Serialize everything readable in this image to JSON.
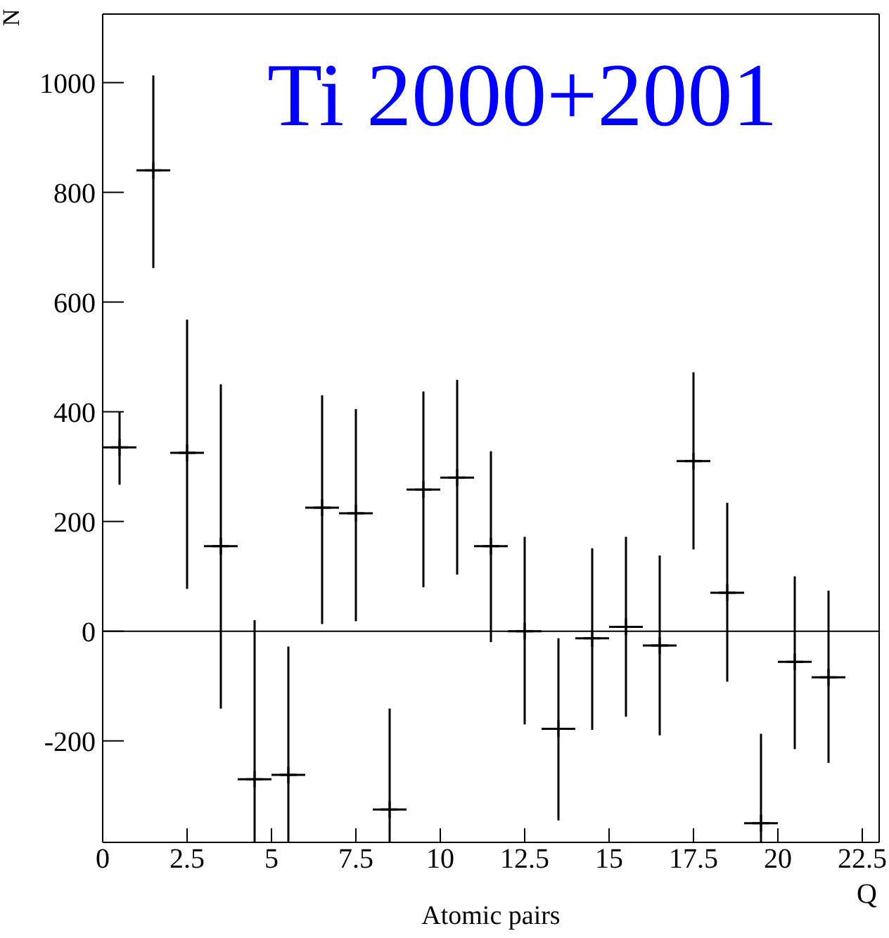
{
  "chart_data": {
    "type": "scatter",
    "title": "Ti 2000+2001",
    "xlabel": "Q",
    "ylabel": "N",
    "annotations": [
      "Atomic pairs"
    ],
    "x": [
      0.5,
      1.5,
      2.5,
      3.5,
      4.5,
      5.5,
      6.5,
      7.5,
      8.5,
      9.5,
      10.5,
      11.5,
      12.5,
      13.5,
      14.5,
      15.5,
      16.5,
      17.5,
      18.5,
      19.5,
      20.5,
      21.5
    ],
    "series": [
      {
        "color": "#000000",
        "values": [
          335,
          840,
          325,
          155,
          -270,
          -262,
          225,
          215,
          -325,
          258,
          280,
          155,
          0,
          -178,
          -13,
          8,
          -26,
          310,
          70,
          -350,
          -56,
          -84
        ],
        "errors": [
          [
            267,
            400
          ],
          [
            662,
            1013
          ],
          [
            77,
            568
          ],
          [
            -141,
            450
          ],
          [
            -385,
            20
          ],
          [
            -385,
            -28
          ],
          [
            13,
            430
          ],
          [
            18,
            405
          ],
          [
            -385,
            -141
          ],
          [
            80,
            437
          ],
          [
            103,
            458
          ],
          [
            -20,
            328
          ],
          [
            -170,
            172
          ],
          [
            -345,
            -13
          ],
          [
            -180,
            151
          ],
          [
            -156,
            172
          ],
          [
            -190,
            138
          ],
          [
            149,
            472
          ],
          [
            -92,
            234
          ],
          [
            -385,
            -187
          ],
          [
            -215,
            100
          ],
          [
            -240,
            74
          ]
        ],
        "xerrors": [
          0.5,
          0.5,
          0.5,
          0.5,
          0.5,
          0.5,
          0.5,
          0.5,
          0.5,
          0.5,
          0.5,
          0.5,
          0.5,
          0.5,
          0.5,
          0.5,
          0.5,
          0.5,
          0.5,
          0.5,
          0.5,
          0.5
        ]
      }
    ],
    "xlim": [
      0,
      23
    ],
    "xticks": [
      0,
      2.5,
      5,
      7.5,
      10,
      12.5,
      15,
      17.5,
      20,
      22.5
    ],
    "ylim": [
      -385,
      1125
    ],
    "yticks": [
      -200,
      0,
      200,
      400,
      600,
      800,
      1000
    ],
    "ref_lines": [
      {
        "axis": "y",
        "value": 0,
        "color": "#000000"
      }
    ],
    "grid": false
  }
}
